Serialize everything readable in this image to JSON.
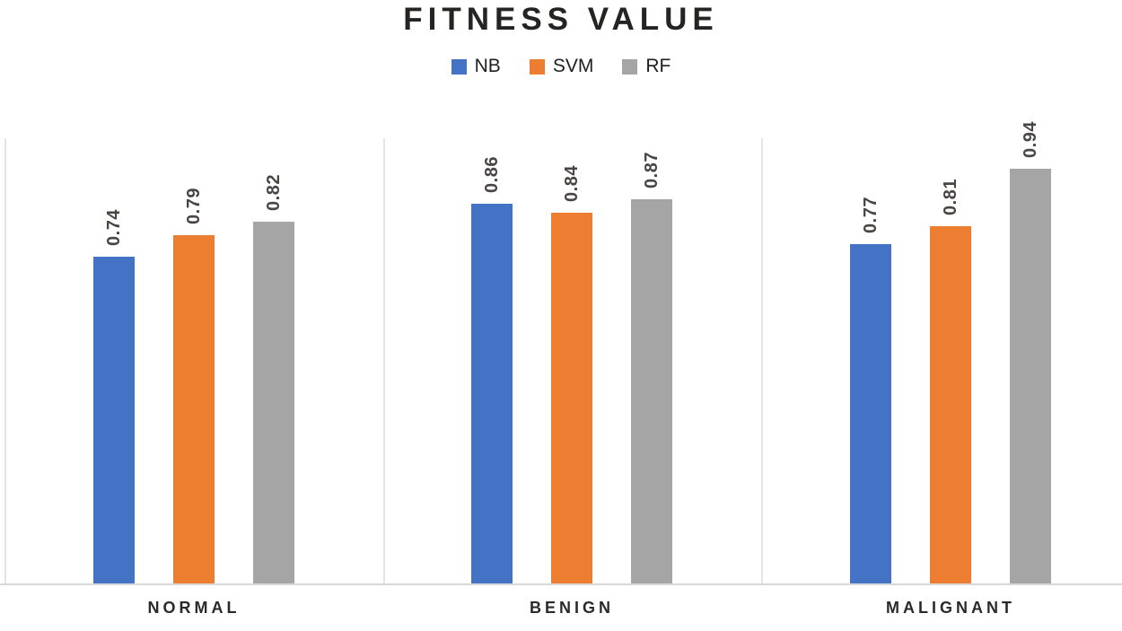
{
  "title": "FITNESS VALUE",
  "colors": {
    "nb": "#4472C4",
    "svm": "#ED7D31",
    "rf": "#A5A5A5",
    "gridline": "#e4e4e4",
    "axis_line": "#d8d8d8",
    "title_text": "#262323",
    "data_label_text": "#4a4542",
    "category_text": "#2c2929"
  },
  "legend": {
    "items": [
      {
        "label": "NB",
        "color": "#4472C4"
      },
      {
        "label": "SVM",
        "color": "#ED7D31"
      },
      {
        "label": "RF",
        "color": "#A5A5A5"
      }
    ]
  },
  "chart_data": {
    "type": "bar",
    "title": "FITNESS VALUE",
    "categories": [
      "NORMAL",
      "BENIGN",
      "MALIGNANT"
    ],
    "series": [
      {
        "name": "NB",
        "color": "#4472C4",
        "values": [
          0.74,
          0.86,
          0.77
        ],
        "labels": [
          "0.74",
          "0.86",
          "0.77"
        ]
      },
      {
        "name": "SVM",
        "color": "#ED7D31",
        "values": [
          0.79,
          0.84,
          0.81
        ],
        "labels": [
          "0.79",
          "0.84",
          "0.81"
        ]
      },
      {
        "name": "RF",
        "color": "#A5A5A5",
        "values": [
          0.82,
          0.87,
          0.94
        ],
        "labels": [
          "0.82",
          "0.87",
          "0.94"
        ]
      }
    ],
    "ylim": [
      0,
      1.0
    ],
    "y_axis_visible": false,
    "x_axis_line": true,
    "grid": "vertical category separators",
    "legend_position": "top",
    "data_labels": {
      "visible": true,
      "rotation": -90,
      "format": "0.00"
    }
  }
}
